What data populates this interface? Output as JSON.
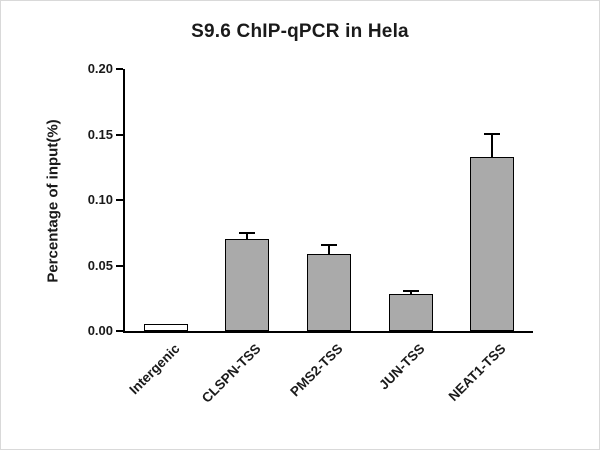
{
  "chart_data": {
    "type": "bar",
    "title": "S9.6 ChIP-qPCR in Hela",
    "ylabel": "Percentage of input(%)",
    "xlabel": "",
    "categories": [
      "Intergenic",
      "CLSPN-TSS",
      "PMS2-TSS",
      "JUN-TSS",
      "NEAT1-TSS"
    ],
    "values": [
      0.005,
      0.07,
      0.059,
      0.028,
      0.133
    ],
    "errors": [
      0,
      0.004,
      0.006,
      0.002,
      0.017
    ],
    "ylim": [
      0,
      0.2
    ],
    "yticks": [
      0.0,
      0.05,
      0.1,
      0.15,
      0.2
    ],
    "ytick_labels": [
      "0.00",
      "0.05",
      "0.10",
      "0.15",
      "0.20"
    ],
    "bar_colors": [
      "#ffffff",
      "#aaaaaa",
      "#aaaaaa",
      "#aaaaaa",
      "#aaaaaa"
    ],
    "bar_border_color": "#000000",
    "axis_color": "#000000",
    "grid": false,
    "legend": null
  }
}
